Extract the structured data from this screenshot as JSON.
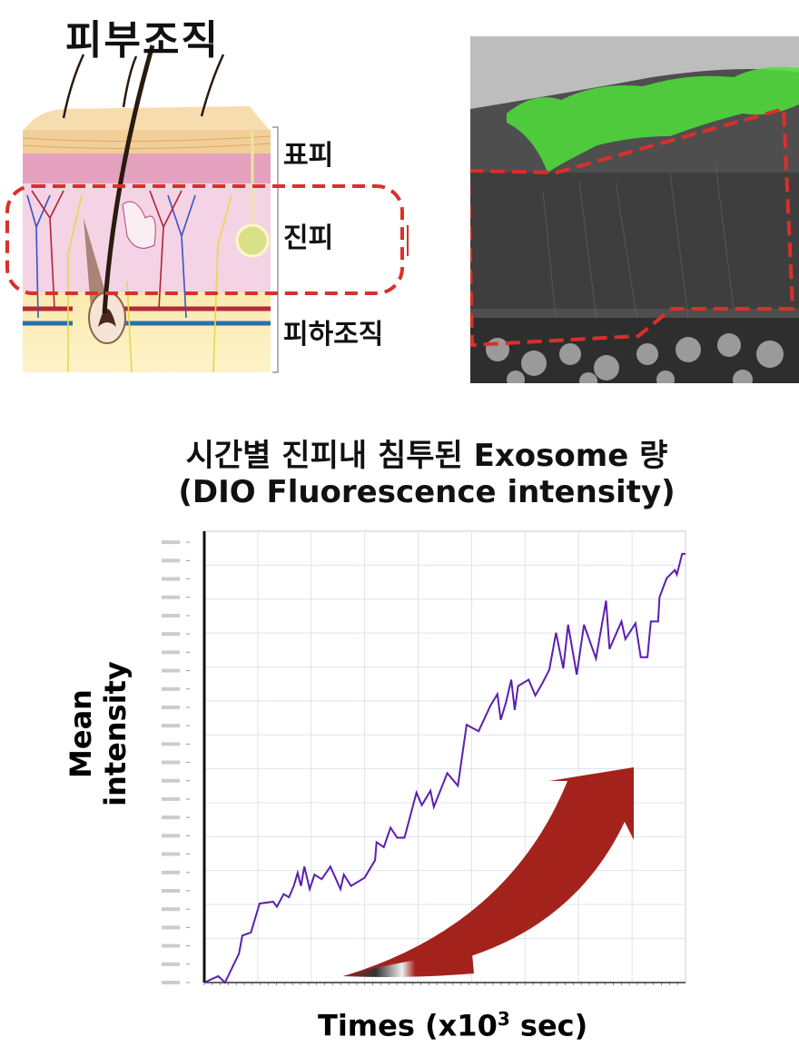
{
  "diagram": {
    "title": "피부조직",
    "layers": [
      "표피",
      "진피",
      "피하조직"
    ]
  },
  "colors": {
    "highlight": "#d9302a",
    "line": "#5a1fb0",
    "arrow": "#a3231c",
    "fluorescence": "#4fe03a"
  },
  "chart_data": {
    "type": "line",
    "title": "시간별 진피내 침투된 Exosome 량",
    "subtitle": "(DIO Fluorescence intensity)",
    "xlabel": "Times (x10",
    "xlabel_sup": "3",
    "xlabel_suffix": " sec)",
    "ylabel": "Mean intensity",
    "xlim": [
      0,
      100
    ],
    "ylim": [
      0,
      100
    ],
    "grid": true,
    "series": [
      {
        "name": "Mean intensity",
        "x": [
          0,
          2.9,
          4.3,
          7.2,
          7.9,
          9.7,
          11.5,
          14.3,
          15.1,
          16.5,
          17.6,
          18.6,
          19.4,
          20.1,
          20.8,
          21.9,
          22.9,
          24.4,
          26.2,
          28.3,
          29.0,
          30.5,
          33.3,
          35.5,
          35.8,
          37.3,
          38.7,
          40.1,
          41.6,
          44.1,
          45.2,
          47.0,
          47.7,
          50.5,
          52.7,
          54.5,
          57.0,
          59.5,
          60.9,
          61.6,
          62.7,
          63.8,
          64.5,
          65.2,
          67.4,
          68.8,
          70.3,
          71.7,
          73.1,
          74.6,
          75.6,
          77.4,
          78.9,
          81.4,
          83.5,
          84.2,
          86.7,
          87.5,
          89.6,
          90.7,
          92.1,
          92.8,
          94.3,
          94.6,
          96.1,
          97.8,
          98.2,
          99.3,
          100
        ],
        "y": [
          0,
          1.4,
          0,
          6.4,
          10.4,
          11.1,
          17.5,
          17.9,
          16.8,
          19.6,
          18.9,
          21.4,
          24.3,
          21.4,
          25.7,
          20.7,
          23.9,
          22.9,
          25.7,
          20.7,
          23.9,
          21.4,
          23.2,
          27.1,
          31.1,
          30,
          34.3,
          32.1,
          32.1,
          42.1,
          39.3,
          42.5,
          38.9,
          46.4,
          43.6,
          57.1,
          55.7,
          61.4,
          63.9,
          58.2,
          62.1,
          67.1,
          60.4,
          65.7,
          67.1,
          63.6,
          66.4,
          69.3,
          77.5,
          69.6,
          79.3,
          68.2,
          79.3,
          71.8,
          84.6,
          73.9,
          80,
          76.1,
          79.6,
          72.1,
          72.1,
          80,
          80,
          85.4,
          89.6,
          91.4,
          90.4,
          95,
          95
        ]
      }
    ]
  }
}
